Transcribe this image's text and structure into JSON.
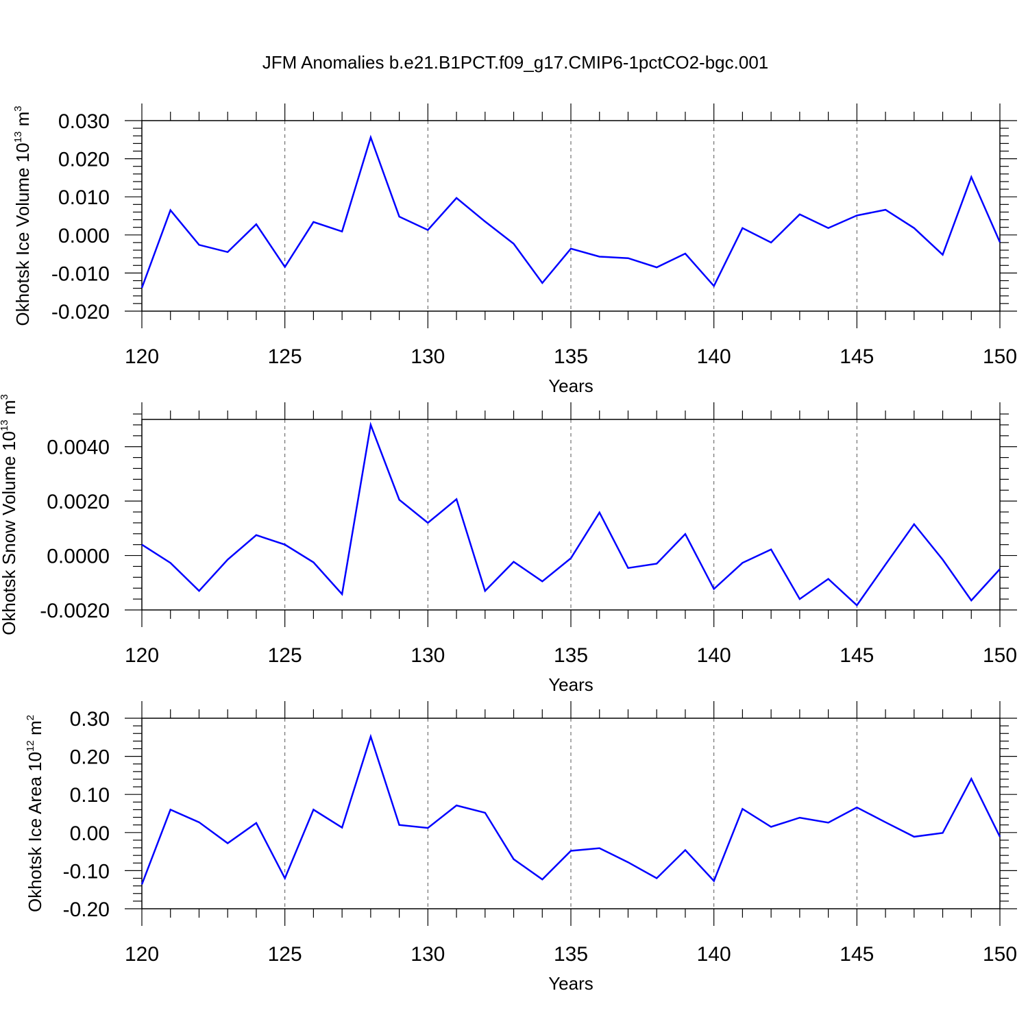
{
  "title": "JFM Anomalies b.e21.B1PCT.f09_g17.CMIP6-1pctCO2-bgc.001",
  "colors": {
    "series": "#0000ff",
    "axes": "#000000",
    "grid": "#555555"
  },
  "chart_data": [
    {
      "type": "line",
      "xlabel": "Years",
      "ylabel": "Okhotsk Ice Volume 10",
      "ylabel_sup": "13",
      "ylabel_unit": "m",
      "ylabel_unit_sup": "3",
      "xlim": [
        120,
        150
      ],
      "ylim": [
        -0.02,
        0.03
      ],
      "x_ticks": [
        120,
        125,
        130,
        135,
        140,
        145,
        150
      ],
      "x_tick_labels": [
        "120",
        "125",
        "130",
        "135",
        "140",
        "145",
        "150"
      ],
      "y_ticks": [
        -0.02,
        -0.01,
        0.0,
        0.01,
        0.02,
        0.03
      ],
      "y_tick_labels": [
        "-0.020",
        "-0.010",
        "0.000",
        "0.010",
        "0.020",
        "0.030"
      ],
      "grid": "vertical dashed at major x ticks",
      "x": [
        120,
        121,
        122,
        123,
        124,
        125,
        126,
        127,
        128,
        129,
        130,
        131,
        132,
        133,
        134,
        135,
        136,
        137,
        138,
        139,
        140,
        141,
        142,
        143,
        144,
        145,
        146,
        147,
        148,
        149,
        150
      ],
      "values": [
        -0.0139,
        0.0065,
        -0.0026,
        -0.0045,
        0.0028,
        -0.0084,
        0.0034,
        0.0009,
        0.0256,
        0.0048,
        0.0013,
        0.0097,
        0.0035,
        -0.0023,
        -0.0126,
        -0.0036,
        -0.0057,
        -0.0061,
        -0.0085,
        -0.0049,
        -0.0134,
        0.0018,
        -0.002,
        0.0054,
        0.0018,
        0.0051,
        0.0066,
        0.0018,
        -0.0052,
        0.0152,
        -0.0019
      ]
    },
    {
      "type": "line",
      "xlabel": "Years",
      "ylabel": "Okhotsk Snow Volume 10",
      "ylabel_sup": "13",
      "ylabel_unit": "m",
      "ylabel_unit_sup": "3",
      "xlim": [
        120,
        150
      ],
      "ylim": [
        -0.002,
        0.005
      ],
      "x_ticks": [
        120,
        125,
        130,
        135,
        140,
        145,
        150
      ],
      "x_tick_labels": [
        "120",
        "125",
        "130",
        "135",
        "140",
        "145",
        "150"
      ],
      "y_ticks": [
        -0.002,
        0.0,
        0.002,
        0.004
      ],
      "y_tick_labels": [
        "-0.0020",
        "0.0000",
        "0.0020",
        "0.0040"
      ],
      "grid": "vertical dashed at major x ticks",
      "x": [
        120,
        121,
        122,
        123,
        124,
        125,
        126,
        127,
        128,
        129,
        130,
        131,
        132,
        133,
        134,
        135,
        136,
        137,
        138,
        139,
        140,
        141,
        142,
        143,
        144,
        145,
        146,
        147,
        148,
        149,
        150
      ],
      "values": [
        0.0004,
        -0.00027,
        -0.0013,
        -0.00015,
        0.00075,
        0.0004,
        -0.00025,
        -0.00142,
        0.0048,
        0.00205,
        0.0012,
        0.00207,
        -0.0013,
        -0.00023,
        -0.00095,
        -0.0001,
        0.00158,
        -0.00046,
        -0.0003,
        0.00079,
        -0.00123,
        -0.00027,
        0.00022,
        -0.0016,
        -0.00086,
        -0.00183,
        -0.00033,
        0.00115,
        -0.00015,
        -0.00165,
        -0.0005
      ]
    },
    {
      "type": "line",
      "xlabel": "Years",
      "ylabel": "Okhotsk Ice Area 10",
      "ylabel_sup": "12",
      "ylabel_unit": "m",
      "ylabel_unit_sup": "2",
      "xlim": [
        120,
        150
      ],
      "ylim": [
        -0.2,
        0.3
      ],
      "x_ticks": [
        120,
        125,
        130,
        135,
        140,
        145,
        150
      ],
      "x_tick_labels": [
        "120",
        "125",
        "130",
        "135",
        "140",
        "145",
        "150"
      ],
      "y_ticks": [
        -0.2,
        -0.1,
        0.0,
        0.1,
        0.2,
        0.3
      ],
      "y_tick_labels": [
        "-0.20",
        "-0.10",
        "0.00",
        "0.10",
        "0.20",
        "0.30"
      ],
      "grid": "vertical dashed at major x ticks",
      "x": [
        120,
        121,
        122,
        123,
        124,
        125,
        126,
        127,
        128,
        129,
        130,
        131,
        132,
        133,
        134,
        135,
        136,
        137,
        138,
        139,
        140,
        141,
        142,
        143,
        144,
        145,
        146,
        147,
        148,
        149,
        150
      ],
      "values": [
        -0.136,
        0.06,
        0.027,
        -0.028,
        0.025,
        -0.12,
        0.06,
        0.013,
        0.252,
        0.02,
        0.012,
        0.071,
        0.052,
        -0.07,
        -0.123,
        -0.048,
        -0.041,
        -0.078,
        -0.12,
        -0.046,
        -0.127,
        0.062,
        0.015,
        0.039,
        0.026,
        0.066,
        0.027,
        -0.011,
        -0.001,
        0.141,
        -0.011
      ]
    }
  ]
}
